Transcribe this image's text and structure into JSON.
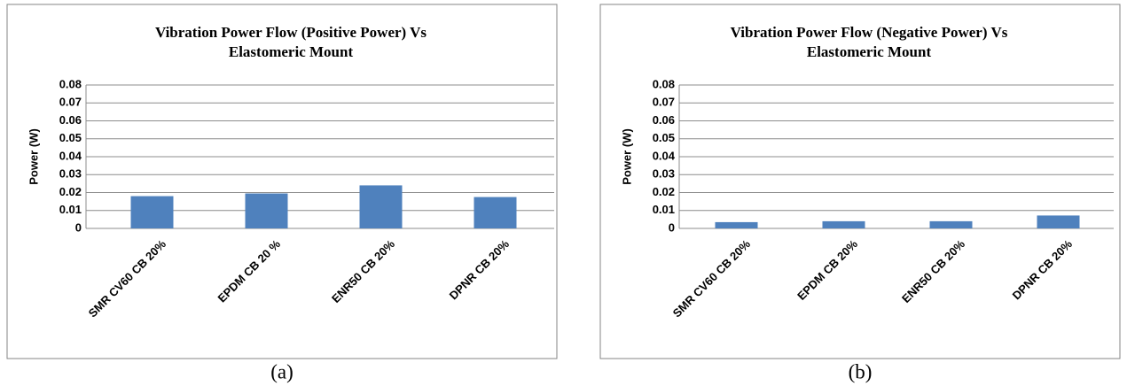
{
  "chart_data": [
    {
      "type": "bar",
      "title": [
        "Vibration Power Flow (Positive Power) Vs",
        "Elastomeric Mount"
      ],
      "y_label": "Power (W)",
      "categories": [
        "SMR CV60 CB 20%",
        "EPDM CB 20 %",
        "ENR50 CB 20%",
        "DPNR CB 20%"
      ],
      "values": [
        0.018,
        0.0195,
        0.024,
        0.0175
      ],
      "color": "#4f81bd",
      "ylim": [
        0,
        0.08
      ],
      "yticks": [
        0,
        0.01,
        0.02,
        0.03,
        0.04,
        0.05,
        0.06,
        0.07,
        0.08
      ],
      "grid": true,
      "caption": "(a)"
    },
    {
      "type": "bar",
      "title": [
        "Vibration Power Flow (Negative Power) Vs",
        "Elastomeric Mount"
      ],
      "y_label": "Power (W)",
      "categories": [
        "SMR CV60 CB 20%",
        "EPDM CB 20%",
        "ENR50 CB 20%",
        "DPNR CB 20%"
      ],
      "values": [
        0.0035,
        0.004,
        0.004,
        0.0072
      ],
      "color": "#4f81bd",
      "ylim": [
        0,
        0.08
      ],
      "yticks": [
        0,
        0.01,
        0.02,
        0.03,
        0.04,
        0.05,
        0.06,
        0.07,
        0.08
      ],
      "grid": true,
      "caption": "(b)"
    }
  ]
}
